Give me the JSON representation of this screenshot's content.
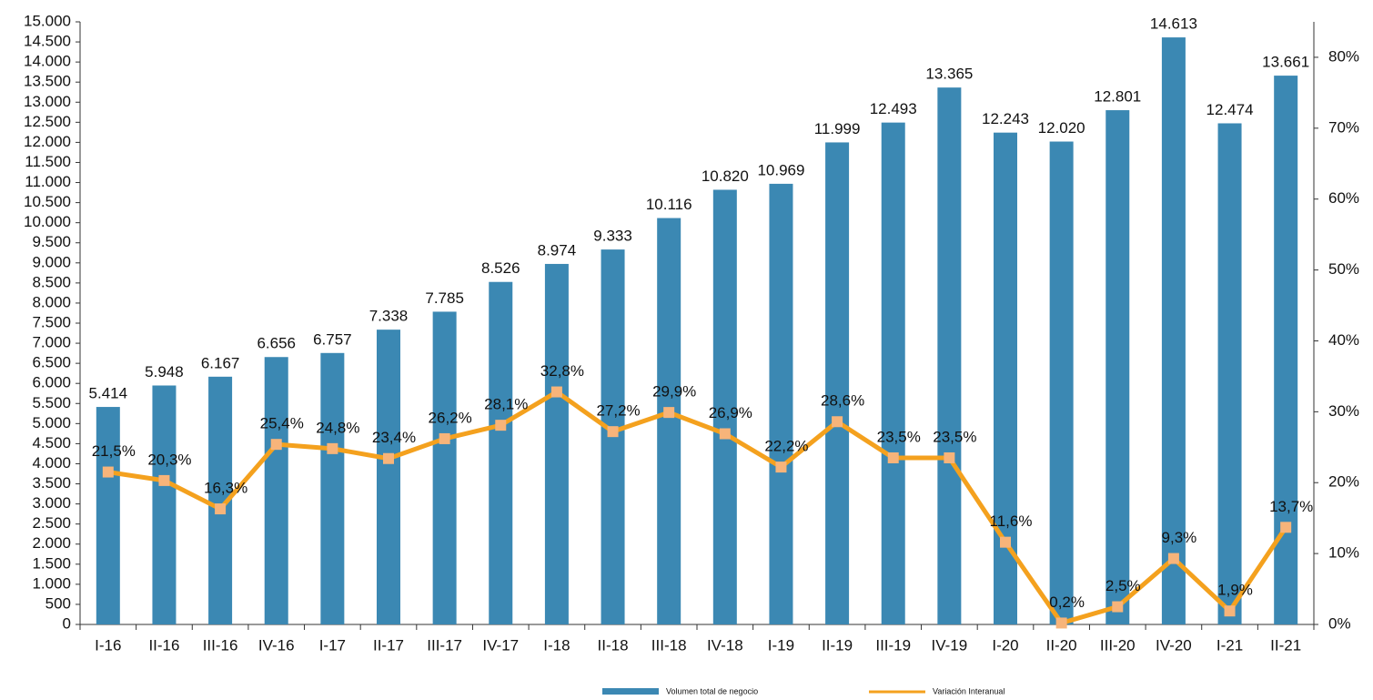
{
  "chart_data": {
    "type": "bar_line",
    "categories": [
      "I-16",
      "II-16",
      "III-16",
      "IV-16",
      "I-17",
      "II-17",
      "III-17",
      "IV-17",
      "I-18",
      "II-18",
      "III-18",
      "IV-18",
      "I-19",
      "II-19",
      "III-19",
      "IV-19",
      "I-20",
      "II-20",
      "III-20",
      "IV-20",
      "I-21",
      "II-21"
    ],
    "series": [
      {
        "name": "Volumen total de negocio",
        "type": "bar",
        "color": "#3b88b3",
        "values": [
          5414,
          5948,
          6167,
          6656,
          6757,
          7338,
          7785,
          8526,
          8974,
          9333,
          10116,
          10820,
          10969,
          11999,
          12493,
          13365,
          12243,
          12020,
          12801,
          14613,
          12474,
          13661
        ],
        "value_labels": [
          "5.414",
          "5.948",
          "6.167",
          "6.656",
          "6.757",
          "7.338",
          "7.785",
          "8.526",
          "8.974",
          "9.333",
          "10.116",
          "10.820",
          "10.969",
          "11.999",
          "12.493",
          "13.365",
          "12.243",
          "12.020",
          "12.801",
          "14.613",
          "12.474",
          "13.661"
        ]
      },
      {
        "name": "Variación Interanual",
        "type": "line",
        "axis": "y2",
        "color": "#f4a11e",
        "marker_color": "#f7b47a",
        "values": [
          21.5,
          20.3,
          16.3,
          25.4,
          24.8,
          23.4,
          26.2,
          28.1,
          32.8,
          27.2,
          29.9,
          26.9,
          22.2,
          28.6,
          23.5,
          23.5,
          11.6,
          0.2,
          2.5,
          9.3,
          1.9,
          13.7
        ],
        "value_labels": [
          "21,5%",
          "20,3%",
          "16,3%",
          "25,4%",
          "24,8%",
          "23,4%",
          "26,2%",
          "28,1%",
          "32,8%",
          "27,2%",
          "29,9%",
          "26,9%",
          "22,2%",
          "28,6%",
          "23,5%",
          "23,5%",
          "11,6%",
          "0,2%",
          "2,5%",
          "9,3%",
          "1,9%",
          "13,7%"
        ]
      }
    ],
    "ylim": [
      0,
      15000
    ],
    "yticks": [
      0,
      500,
      {
        "value": 1000,
        "label": "1.000"
      },
      {
        "value": 1500,
        "label": "1.500"
      },
      {
        "value": 2000,
        "label": "2.000"
      },
      {
        "value": 2500,
        "label": "2.500"
      },
      {
        "value": 3000,
        "label": "3.000"
      },
      {
        "value": 3500,
        "label": "3.500"
      },
      {
        "value": 4000,
        "label": "4.000"
      },
      {
        "value": 4500,
        "label": "4.500"
      },
      {
        "value": 5000,
        "label": "5.000"
      },
      {
        "value": 5500,
        "label": "5.500"
      },
      {
        "value": 6000,
        "label": "6.000"
      },
      {
        "value": 6500,
        "label": "6.500"
      },
      {
        "value": 7000,
        "label": "7.000"
      },
      {
        "value": 7500,
        "label": "7.500"
      },
      {
        "value": 8000,
        "label": "8.000"
      },
      {
        "value": 8500,
        "label": "8.500"
      },
      {
        "value": 9000,
        "label": "9.000"
      },
      {
        "value": 9500,
        "label": "9.500"
      },
      {
        "value": 10000,
        "label": "10.000"
      },
      {
        "value": 10500,
        "label": "10.500"
      },
      {
        "value": 11000,
        "label": "11.000"
      },
      {
        "value": 11500,
        "label": "11.500"
      },
      {
        "value": 12000,
        "label": "12.000"
      },
      {
        "value": 12500,
        "label": "12.500"
      },
      {
        "value": 13000,
        "label": "13.000"
      },
      {
        "value": 13500,
        "label": "13.500"
      },
      {
        "value": 14000,
        "label": "14.000"
      },
      {
        "value": 14500,
        "label": "14.500"
      },
      {
        "value": 15000,
        "label": "15.000"
      }
    ],
    "y2lim": [
      0,
      85
    ],
    "y2ticks": [
      {
        "value": 0,
        "label": "0%"
      },
      {
        "value": 10,
        "label": "10%"
      },
      {
        "value": 20,
        "label": "20%"
      },
      {
        "value": 30,
        "label": "30%"
      },
      {
        "value": 40,
        "label": "40%"
      },
      {
        "value": 50,
        "label": "50%"
      },
      {
        "value": 60,
        "label": "60%"
      },
      {
        "value": 70,
        "label": "70%"
      },
      {
        "value": 80,
        "label": "80%"
      }
    ],
    "grid": false,
    "legend": "bottom"
  }
}
